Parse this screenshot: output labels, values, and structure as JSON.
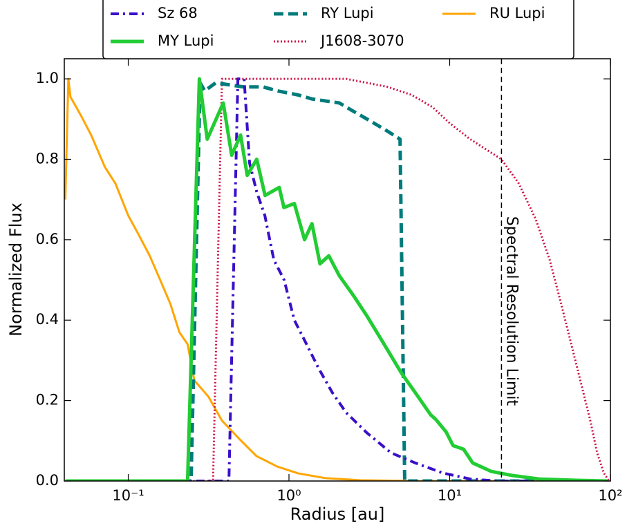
{
  "chart_data": {
    "type": "line",
    "x_label": "Radius [au]",
    "y_label": "Normalized Flux",
    "xscale": "log",
    "xlim": [
      0.04,
      100
    ],
    "ylim": [
      0,
      1.05
    ],
    "xticks": [
      {
        "value": 0.1,
        "label": "10⁻¹"
      },
      {
        "value": 1,
        "label": "10⁰"
      },
      {
        "value": 10,
        "label": "10¹"
      },
      {
        "value": 100,
        "label": "10²"
      }
    ],
    "yticks": [
      {
        "value": 0,
        "label": "0.0"
      },
      0.2,
      0.4,
      0.6,
      0.8,
      {
        "value": 1,
        "label": "1.0"
      }
    ],
    "legend": "top",
    "vline": {
      "x": 21,
      "label": "Spectral Resolution Limit"
    },
    "series": [
      {
        "name": "Sz 68",
        "color": "#3a10c8",
        "style": "dashdot",
        "x": [
          0.0406,
          0.423,
          0.481,
          0.526,
          0.569,
          0.629,
          0.708,
          0.805,
          0.933,
          1.08,
          1.25,
          1.53,
          1.86,
          2.27,
          3.05,
          4.32,
          6.1,
          9.05,
          13.4,
          20,
          96
        ],
        "values": [
          0,
          0,
          1.0,
          1.0,
          0.79,
          0.72,
          0.66,
          0.55,
          0.5,
          0.4,
          0.35,
          0.28,
          0.22,
          0.17,
          0.12,
          0.07,
          0.045,
          0.02,
          0.005,
          0,
          0
        ]
      },
      {
        "name": "MY Lupi",
        "color": "#22cc33",
        "style": "solid",
        "x": [
          0.0406,
          0.234,
          0.277,
          0.31,
          0.39,
          0.44,
          0.5,
          0.55,
          0.63,
          0.71,
          0.87,
          0.93,
          1.08,
          1.25,
          1.39,
          1.56,
          1.77,
          2.06,
          2.53,
          3.06,
          3.91,
          4.98,
          6.1,
          7.6,
          8.2,
          9.5,
          10.5,
          12.2,
          13.9,
          18.1,
          24.3,
          36,
          59,
          96
        ],
        "values": [
          0,
          0,
          1.0,
          0.85,
          0.94,
          0.81,
          0.86,
          0.76,
          0.8,
          0.71,
          0.73,
          0.68,
          0.69,
          0.6,
          0.64,
          0.54,
          0.56,
          0.51,
          0.46,
          0.41,
          0.34,
          0.27,
          0.22,
          0.165,
          0.153,
          0.122,
          0.088,
          0.079,
          0.045,
          0.024,
          0.014,
          0.005,
          0.002,
          0
        ]
      },
      {
        "name": "RY Lupi",
        "color": "#007b7b",
        "style": "dashed",
        "x": [
          0.0406,
          0.246,
          0.28,
          0.299,
          0.35,
          0.52,
          0.69,
          0.85,
          1.14,
          1.39,
          2.06,
          2.5,
          3.06,
          4.1,
          4.91,
          5.25,
          96
        ],
        "values": [
          0,
          0,
          0.99,
          0.97,
          0.99,
          0.98,
          0.98,
          0.97,
          0.96,
          0.95,
          0.94,
          0.92,
          0.9,
          0.87,
          0.85,
          0,
          0
        ]
      },
      {
        "name": "J1608-3070",
        "color": "#cc1144",
        "style": "dotted",
        "x": [
          0.0406,
          0.337,
          0.383,
          2.27,
          3.06,
          4.11,
          5.8,
          7.8,
          10,
          13.4,
          21,
          26.9,
          34.4,
          41.9,
          48.7,
          56.3,
          65,
          75,
          82.7,
          91,
          98
        ],
        "values": [
          0,
          0,
          1.0,
          1.0,
          0.99,
          0.98,
          0.96,
          0.93,
          0.89,
          0.85,
          0.8,
          0.74,
          0.65,
          0.55,
          0.45,
          0.35,
          0.25,
          0.15,
          0.07,
          0.02,
          0
        ]
      },
      {
        "name": "RU Lupi",
        "color": "#ffa500",
        "style": "solid-thin",
        "x": [
          0.0406,
          0.0424,
          0.0437,
          0.0506,
          0.0588,
          0.0717,
          0.0832,
          0.1,
          0.117,
          0.136,
          0.158,
          0.183,
          0.208,
          0.234,
          0.258,
          0.315,
          0.383,
          0.49,
          0.628,
          0.845,
          1.14,
          1.69,
          2.77,
          6.1,
          16.4,
          96
        ],
        "values": [
          0.7,
          1.0,
          0.955,
          0.91,
          0.86,
          0.78,
          0.74,
          0.66,
          0.61,
          0.56,
          0.5,
          0.44,
          0.37,
          0.34,
          0.25,
          0.21,
          0.15,
          0.105,
          0.062,
          0.036,
          0.019,
          0.007,
          0.002,
          0,
          0,
          0
        ]
      }
    ]
  }
}
